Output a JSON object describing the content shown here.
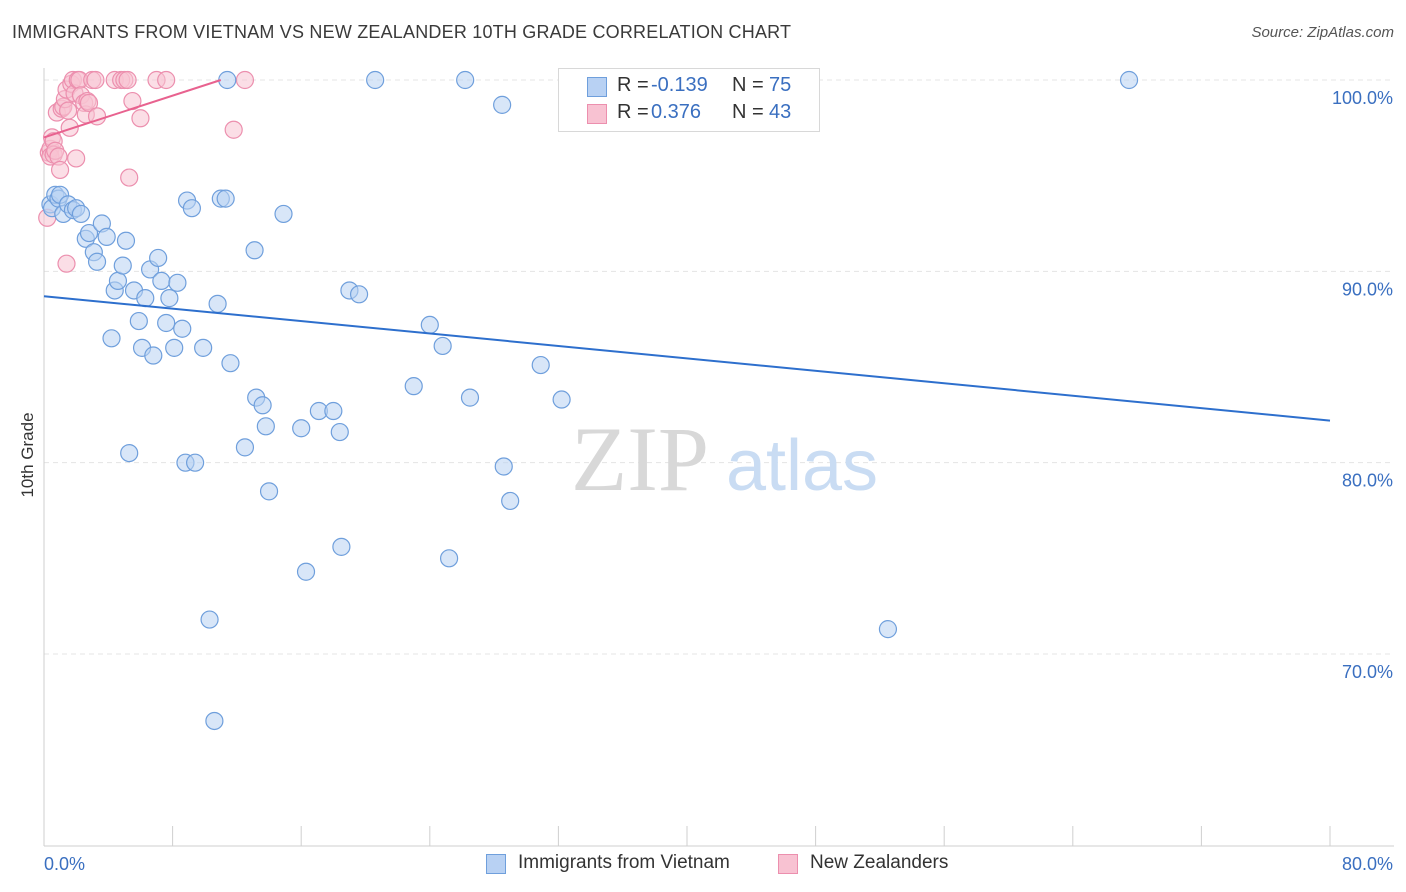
{
  "title": "IMMIGRANTS FROM VIETNAM VS NEW ZEALANDER 10TH GRADE CORRELATION CHART",
  "source": "Source: ZipAtlas.com",
  "watermark": {
    "zip": "ZIP",
    "atlas": "atlas"
  },
  "colors": {
    "blue_fill": "#b8d1f3",
    "blue_stroke": "#6f9fdc",
    "blue_line": "#2d6fcd",
    "pink_fill": "#f8c2d2",
    "pink_stroke": "#ec8fae",
    "pink_line": "#e8628f",
    "tick_text": "#3a6fc0",
    "grid": "#e4e4e4"
  },
  "stats": {
    "row1": {
      "r_label": "R =",
      "r_value": "-0.139",
      "n_label": "N =",
      "n_value": "75"
    },
    "row2": {
      "r_label": "R =",
      "r_value": "0.376",
      "n_label": "N =",
      "n_value": "43"
    }
  },
  "legend": {
    "blue": "Immigrants from Vietnam",
    "pink": "New Zealanders"
  },
  "chart_data": {
    "type": "scatter",
    "title": "IMMIGRANTS FROM VIETNAM VS NEW ZEALANDER 10TH GRADE CORRELATION CHART",
    "xlabel": "",
    "ylabel": "10th Grade",
    "xlim": [
      0,
      80
    ],
    "ylim": [
      60.5,
      101.2
    ],
    "x_tick_labels": [
      "0.0%",
      "80.0%"
    ],
    "y_ticks": [
      70,
      80,
      90,
      100
    ],
    "y_tick_labels": [
      "70.0%",
      "80.0%",
      "90.0%",
      "100.0%"
    ],
    "grid": true,
    "series": [
      {
        "name": "Immigrants from Vietnam",
        "color": "#6f9fdc",
        "r": -0.139,
        "n": 75,
        "trend": {
          "x": [
            0,
            80
          ],
          "y": [
            88.7,
            82.2
          ]
        },
        "points": [
          [
            0.4,
            93.5
          ],
          [
            0.5,
            93.3
          ],
          [
            0.7,
            94.0
          ],
          [
            0.9,
            93.8
          ],
          [
            1.0,
            94.0
          ],
          [
            1.2,
            93.0
          ],
          [
            1.5,
            93.5
          ],
          [
            1.8,
            93.2
          ],
          [
            2.0,
            93.3
          ],
          [
            2.3,
            93.0
          ],
          [
            2.6,
            91.7
          ],
          [
            2.8,
            92.0
          ],
          [
            3.1,
            91.0
          ],
          [
            3.3,
            90.5
          ],
          [
            3.6,
            92.5
          ],
          [
            3.9,
            91.8
          ],
          [
            4.2,
            86.5
          ],
          [
            4.4,
            89.0
          ],
          [
            4.6,
            89.5
          ],
          [
            4.9,
            90.3
          ],
          [
            5.1,
            91.6
          ],
          [
            5.3,
            80.5
          ],
          [
            5.6,
            89.0
          ],
          [
            5.9,
            87.4
          ],
          [
            6.1,
            86.0
          ],
          [
            6.3,
            88.6
          ],
          [
            6.6,
            90.1
          ],
          [
            6.8,
            85.6
          ],
          [
            7.1,
            90.7
          ],
          [
            7.3,
            89.5
          ],
          [
            7.6,
            87.3
          ],
          [
            7.8,
            88.6
          ],
          [
            8.1,
            86.0
          ],
          [
            8.3,
            89.4
          ],
          [
            8.6,
            87.0
          ],
          [
            8.8,
            80.0
          ],
          [
            8.9,
            93.7
          ],
          [
            9.2,
            93.3
          ],
          [
            9.4,
            80.0
          ],
          [
            9.9,
            86.0
          ],
          [
            10.3,
            71.8
          ],
          [
            10.6,
            66.5
          ],
          [
            10.8,
            88.3
          ],
          [
            11.0,
            93.8
          ],
          [
            11.3,
            93.8
          ],
          [
            11.6,
            85.2
          ],
          [
            12.5,
            80.8
          ],
          [
            13.1,
            91.1
          ],
          [
            13.2,
            83.4
          ],
          [
            13.6,
            83.0
          ],
          [
            13.8,
            81.9
          ],
          [
            14.0,
            78.5
          ],
          [
            14.9,
            93.0
          ],
          [
            16.0,
            81.8
          ],
          [
            16.3,
            74.3
          ],
          [
            17.1,
            82.7
          ],
          [
            18.0,
            82.7
          ],
          [
            18.4,
            81.6
          ],
          [
            18.5,
            75.6
          ],
          [
            19.0,
            89.0
          ],
          [
            19.6,
            88.8
          ],
          [
            11.4,
            100.0
          ],
          [
            20.6,
            100.0
          ],
          [
            23.0,
            84.0
          ],
          [
            24.0,
            87.2
          ],
          [
            24.8,
            86.1
          ],
          [
            25.2,
            75.0
          ],
          [
            26.2,
            100.0
          ],
          [
            26.5,
            83.4
          ],
          [
            28.5,
            98.7
          ],
          [
            28.6,
            79.8
          ],
          [
            29.0,
            78.0
          ],
          [
            30.9,
            85.1
          ],
          [
            32.2,
            83.3
          ],
          [
            52.5,
            71.3
          ],
          [
            67.5,
            100.0
          ]
        ]
      },
      {
        "name": "New Zealanders",
        "color": "#ec8fae",
        "r": 0.376,
        "n": 43,
        "trend": {
          "x": [
            0,
            11
          ],
          "y": [
            97.0,
            100.0
          ]
        },
        "points": [
          [
            0.2,
            92.8
          ],
          [
            0.3,
            96.2
          ],
          [
            0.4,
            96.4
          ],
          [
            0.4,
            96.0
          ],
          [
            0.5,
            97.0
          ],
          [
            0.6,
            96.8
          ],
          [
            0.6,
            96.1
          ],
          [
            0.7,
            96.3
          ],
          [
            0.8,
            98.3
          ],
          [
            0.9,
            96.0
          ],
          [
            1.0,
            95.3
          ],
          [
            1.1,
            98.5
          ],
          [
            1.2,
            98.6
          ],
          [
            1.3,
            99.0
          ],
          [
            1.4,
            99.5
          ],
          [
            1.4,
            90.4
          ],
          [
            1.5,
            98.4
          ],
          [
            1.6,
            97.5
          ],
          [
            1.7,
            99.8
          ],
          [
            1.8,
            100.0
          ],
          [
            1.9,
            99.3
          ],
          [
            2.0,
            95.9
          ],
          [
            2.1,
            100.0
          ],
          [
            2.2,
            100.0
          ],
          [
            2.3,
            99.2
          ],
          [
            2.5,
            98.8
          ],
          [
            2.6,
            98.2
          ],
          [
            2.7,
            98.9
          ],
          [
            2.8,
            98.8
          ],
          [
            3.0,
            100.0
          ],
          [
            3.2,
            100.0
          ],
          [
            3.3,
            98.1
          ],
          [
            4.4,
            100.0
          ],
          [
            4.8,
            100.0
          ],
          [
            5.0,
            100.0
          ],
          [
            5.2,
            100.0
          ],
          [
            5.3,
            94.9
          ],
          [
            5.5,
            98.9
          ],
          [
            6.0,
            98.0
          ],
          [
            7.0,
            100.0
          ],
          [
            7.6,
            100.0
          ],
          [
            11.8,
            97.4
          ],
          [
            12.5,
            100.0
          ]
        ]
      }
    ]
  }
}
